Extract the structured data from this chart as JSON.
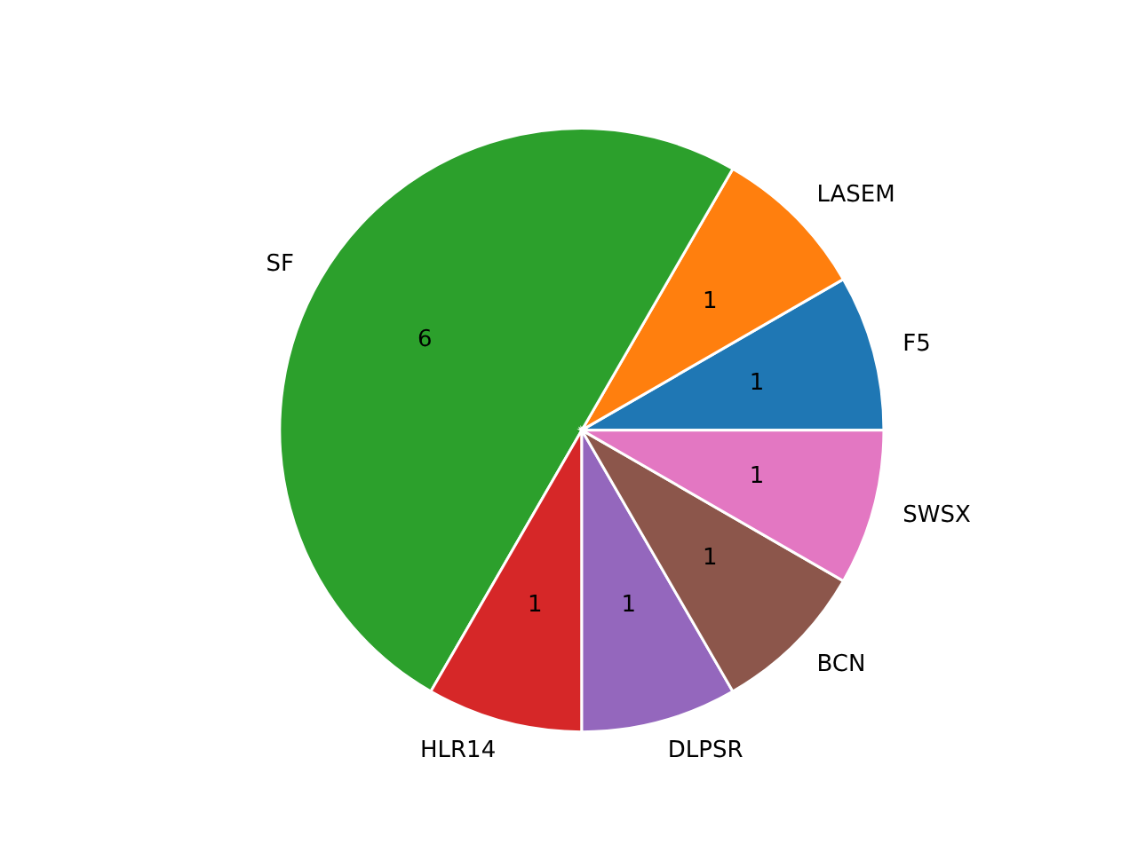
{
  "chart_data": {
    "type": "pie",
    "categories": [
      "F5",
      "LASEM",
      "SF",
      "HLR14",
      "DLPSR",
      "BCN",
      "SWSX"
    ],
    "values": [
      1,
      1,
      6,
      1,
      1,
      1,
      1
    ],
    "colors": [
      "#1f77b4",
      "#ff7f0e",
      "#2ca02c",
      "#d62728",
      "#9467bd",
      "#8c564b",
      "#e377c2"
    ],
    "data_labels": true
  }
}
